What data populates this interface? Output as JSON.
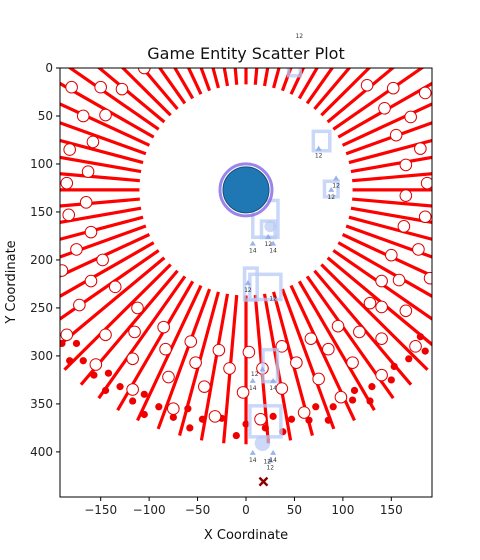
{
  "chart_data": {
    "type": "scatter",
    "title": "Game Entity Scatter Plot",
    "xlabel": "X Coordinate",
    "ylabel": "Y Coordinate",
    "xlim": [
      -192,
      192
    ],
    "ylim": [
      447,
      0
    ],
    "x_ticks": [
      -150,
      -100,
      -50,
      0,
      50,
      100,
      150
    ],
    "y_ticks": [
      0,
      50,
      100,
      150,
      200,
      250,
      300,
      350,
      400
    ],
    "grid": false,
    "colors": {
      "ray": "#ff0000",
      "marker_fill": "#ffffff",
      "marker_edge": "#e00000",
      "dot": "#ee0000",
      "player_fill": "#1f77b4",
      "player_ring": "#8a6fe8",
      "ghost": "#b7c9f5",
      "x_marker": "#8b0000"
    },
    "ring": {
      "cx": 0,
      "cy": 127,
      "r_inner": 110,
      "r_outer": 265
    },
    "rays_count": 72,
    "player": {
      "x": 0,
      "y": 127,
      "label": ""
    },
    "open_markers": [
      {
        "x": -180,
        "y": 20
      },
      {
        "x": -150,
        "y": 20
      },
      {
        "x": -128,
        "y": 22
      },
      {
        "x": -105,
        "y": 0
      },
      {
        "x": -168,
        "y": 50
      },
      {
        "x": -145,
        "y": 49
      },
      {
        "x": -158,
        "y": 77
      },
      {
        "x": -182,
        "y": 85
      },
      {
        "x": -163,
        "y": 108
      },
      {
        "x": -185,
        "y": 120
      },
      {
        "x": -165,
        "y": 140
      },
      {
        "x": -183,
        "y": 153
      },
      {
        "x": -160,
        "y": 171
      },
      {
        "x": -175,
        "y": 189
      },
      {
        "x": -148,
        "y": 200
      },
      {
        "x": -190,
        "y": 211
      },
      {
        "x": -160,
        "y": 222
      },
      {
        "x": -135,
        "y": 228
      },
      {
        "x": -172,
        "y": 247
      },
      {
        "x": -112,
        "y": 250
      },
      {
        "x": -185,
        "y": 278
      },
      {
        "x": -145,
        "y": 278
      },
      {
        "x": -115,
        "y": 275
      },
      {
        "x": -85,
        "y": 270
      },
      {
        "x": -155,
        "y": 309
      },
      {
        "x": -117,
        "y": 303
      },
      {
        "x": -83,
        "y": 293
      },
      {
        "x": -57,
        "y": 285
      },
      {
        "x": -80,
        "y": 322
      },
      {
        "x": -52,
        "y": 307
      },
      {
        "x": -28,
        "y": 294
      },
      {
        "x": -17,
        "y": 313
      },
      {
        "x": -117,
        "y": 335
      },
      {
        "x": -43,
        "y": 332
      },
      {
        "x": 3,
        "y": 296
      },
      {
        "x": 17,
        "y": 313
      },
      {
        "x": -75,
        "y": 355
      },
      {
        "x": -32,
        "y": 363
      },
      {
        "x": -3,
        "y": 338
      },
      {
        "x": 37,
        "y": 290
      },
      {
        "x": 37,
        "y": 334
      },
      {
        "x": 52,
        "y": 307
      },
      {
        "x": 67,
        "y": 282
      },
      {
        "x": 75,
        "y": 324
      },
      {
        "x": 85,
        "y": 293
      },
      {
        "x": 95,
        "y": 269
      },
      {
        "x": 110,
        "y": 307
      },
      {
        "x": 117,
        "y": 275
      },
      {
        "x": 98,
        "y": 343
      },
      {
        "x": 60,
        "y": 359
      },
      {
        "x": 15,
        "y": 366
      },
      {
        "x": 128,
        "y": 245
      },
      {
        "x": 140,
        "y": 249
      },
      {
        "x": 140,
        "y": 282
      },
      {
        "x": 165,
        "y": 253
      },
      {
        "x": 140,
        "y": 320
      },
      {
        "x": 175,
        "y": 290
      },
      {
        "x": 190,
        "y": 219
      },
      {
        "x": 158,
        "y": 221
      },
      {
        "x": 178,
        "y": 189
      },
      {
        "x": 163,
        "y": 165
      },
      {
        "x": 140,
        "y": 222
      },
      {
        "x": 150,
        "y": 195
      },
      {
        "x": 185,
        "y": 155
      },
      {
        "x": 165,
        "y": 133
      },
      {
        "x": 187,
        "y": 120
      },
      {
        "x": 165,
        "y": 101
      },
      {
        "x": 180,
        "y": 84
      },
      {
        "x": 155,
        "y": 70
      },
      {
        "x": 170,
        "y": 51
      },
      {
        "x": 143,
        "y": 42
      },
      {
        "x": 185,
        "y": 26
      },
      {
        "x": 152,
        "y": 21
      },
      {
        "x": 125,
        "y": 18
      }
    ],
    "dots": [
      {
        "x": -190,
        "y": 287
      },
      {
        "x": -175,
        "y": 287
      },
      {
        "x": -182,
        "y": 305
      },
      {
        "x": -168,
        "y": 305
      },
      {
        "x": -157,
        "y": 320
      },
      {
        "x": -142,
        "y": 318
      },
      {
        "x": -145,
        "y": 336
      },
      {
        "x": -130,
        "y": 332
      },
      {
        "x": -117,
        "y": 347
      },
      {
        "x": -105,
        "y": 340
      },
      {
        "x": -105,
        "y": 361
      },
      {
        "x": -90,
        "y": 353
      },
      {
        "x": -75,
        "y": 364
      },
      {
        "x": -60,
        "y": 355
      },
      {
        "x": -58,
        "y": 375
      },
      {
        "x": -45,
        "y": 366
      },
      {
        "x": -25,
        "y": 365
      },
      {
        "x": -10,
        "y": 383
      },
      {
        "x": 0,
        "y": 371
      },
      {
        "x": 20,
        "y": 375
      },
      {
        "x": 28,
        "y": 363
      },
      {
        "x": 38,
        "y": 379
      },
      {
        "x": 47,
        "y": 366
      },
      {
        "x": 65,
        "y": 367
      },
      {
        "x": 72,
        "y": 353
      },
      {
        "x": 85,
        "y": 367
      },
      {
        "x": 90,
        "y": 353
      },
      {
        "x": 110,
        "y": 346
      },
      {
        "x": 112,
        "y": 336
      },
      {
        "x": 128,
        "y": 347
      },
      {
        "x": 130,
        "y": 332
      },
      {
        "x": 150,
        "y": 325
      },
      {
        "x": 153,
        "y": 311
      },
      {
        "x": 168,
        "y": 303
      },
      {
        "x": 180,
        "y": 280
      },
      {
        "x": 185,
        "y": 295
      }
    ],
    "x_marker": {
      "x": 18,
      "y": 431
    },
    "ghost_boxes": [
      {
        "x": 20,
        "y": 157,
        "w": 26,
        "h": 38
      },
      {
        "x": 23,
        "y": 168,
        "w": 14,
        "h": 17
      },
      {
        "x": 5,
        "y": 225,
        "w": 13,
        "h": 33
      },
      {
        "x": 20,
        "y": 228,
        "w": 32,
        "h": 26
      },
      {
        "x": 25,
        "y": 310,
        "w": 15,
        "h": 33
      },
      {
        "x": 20,
        "y": 368,
        "w": 32,
        "h": 32
      },
      {
        "x": 78,
        "y": 76,
        "w": 17,
        "h": 20
      },
      {
        "x": 88,
        "y": 126,
        "w": 14,
        "h": 16
      },
      {
        "x": 50,
        "y": 2,
        "w": 12,
        "h": 12
      }
    ],
    "ghost_circles": [
      {
        "x": 25,
        "y": 165,
        "r": 6
      },
      {
        "x": 17,
        "y": 391,
        "r": 8
      }
    ],
    "triangles": [
      {
        "x": 7,
        "y": 183,
        "label": "14"
      },
      {
        "x": 23,
        "y": 176,
        "label": "12"
      },
      {
        "x": 28,
        "y": 183,
        "label": "14"
      },
      {
        "x": 2,
        "y": 224,
        "label": "12"
      },
      {
        "x": 17,
        "y": 314,
        "label": ""
      },
      {
        "x": 7,
        "y": 326,
        "label": "14"
      },
      {
        "x": 28,
        "y": 326,
        "label": "14"
      },
      {
        "x": 25,
        "y": 409,
        "label": "12"
      },
      {
        "x": 7,
        "y": 401,
        "label": "14"
      },
      {
        "x": 28,
        "y": 401,
        "label": "14"
      },
      {
        "x": 75,
        "y": 84,
        "label": "12"
      },
      {
        "x": 88,
        "y": 127,
        "label": "12"
      },
      {
        "x": 93,
        "y": 115,
        "label": "12"
      }
    ],
    "small_labels": [
      {
        "x": 55,
        "y": -31,
        "text": "12"
      },
      {
        "x": 9,
        "y": 321,
        "text": "12"
      },
      {
        "x": 22,
        "y": 412,
        "text": "12"
      },
      {
        "x": 28,
        "y": 242,
        "text": "12"
      }
    ]
  }
}
